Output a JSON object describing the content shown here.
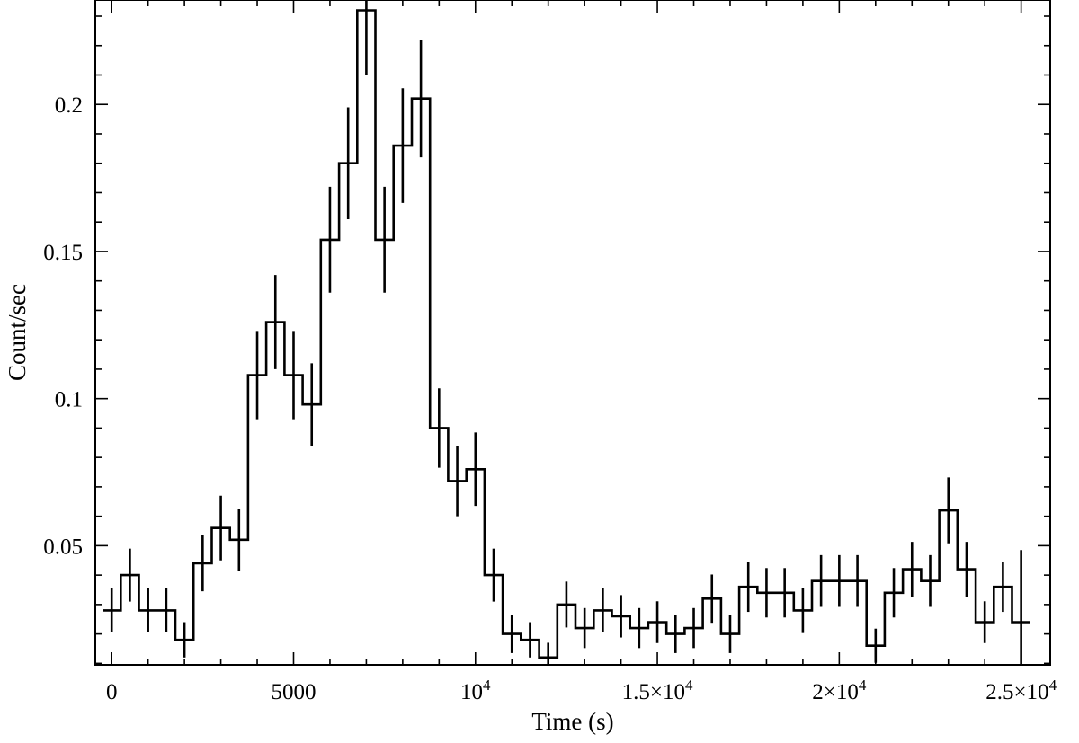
{
  "chart_data": {
    "type": "line",
    "title": "",
    "xlabel": "Time (s)",
    "ylabel": "Count/sec",
    "xlim": [
      -450,
      25800
    ],
    "ylim": [
      0.0095,
      0.2355
    ],
    "x_ticks": [
      {
        "value": 0,
        "mantissa": "0",
        "exponent": ""
      },
      {
        "value": 5000,
        "mantissa": "5000",
        "exponent": ""
      },
      {
        "value": 10000,
        "mantissa": "10",
        "exponent": "4"
      },
      {
        "value": 15000,
        "mantissa": "1.5×10",
        "exponent": "4"
      },
      {
        "value": 20000,
        "mantissa": "2×10",
        "exponent": "4"
      },
      {
        "value": 25000,
        "mantissa": "2.5×10",
        "exponent": "4"
      }
    ],
    "y_ticks": [
      {
        "value": 0.05,
        "label": "0.05"
      },
      {
        "value": 0.1,
        "label": "0.1"
      },
      {
        "value": 0.15,
        "label": "0.15"
      },
      {
        "value": 0.2,
        "label": "0.2"
      }
    ],
    "bin_width": 500,
    "grid": false,
    "series": [
      {
        "style": "step with vertical error bars",
        "x": [
          0,
          500,
          1000,
          1500,
          2000,
          2500,
          3000,
          3500,
          4000,
          4500,
          5000,
          5500,
          6000,
          6500,
          7000,
          7500,
          8000,
          8500,
          9000,
          9500,
          10000,
          10500,
          11000,
          11500,
          12000,
          12500,
          13000,
          13500,
          14000,
          14500,
          15000,
          15500,
          16000,
          16500,
          17000,
          17500,
          18000,
          18500,
          19000,
          19500,
          20000,
          20500,
          21000,
          21500,
          22000,
          22500,
          23000,
          23500,
          24000,
          24500,
          25000
        ],
        "y": [
          0.028,
          0.04,
          0.028,
          0.028,
          0.018,
          0.044,
          0.056,
          0.052,
          0.108,
          0.126,
          0.108,
          0.098,
          0.154,
          0.18,
          0.232,
          0.154,
          0.186,
          0.202,
          0.09,
          0.072,
          0.076,
          0.04,
          0.02,
          0.018,
          0.012,
          0.03,
          0.022,
          0.028,
          0.026,
          0.022,
          0.024,
          0.02,
          0.022,
          0.032,
          0.02,
          0.036,
          0.034,
          0.034,
          0.028,
          0.038,
          0.038,
          0.038,
          0.016,
          0.034,
          0.042,
          0.038,
          0.062,
          0.042,
          0.024,
          0.036,
          0.024
        ],
        "yerr": [
          0.0075,
          0.009,
          0.0075,
          0.0075,
          0.006,
          0.0095,
          0.011,
          0.0105,
          0.015,
          0.016,
          0.015,
          0.014,
          0.018,
          0.019,
          0.022,
          0.018,
          0.0195,
          0.02,
          0.0135,
          0.012,
          0.0125,
          0.009,
          0.0065,
          0.006,
          0.005,
          0.0078,
          0.0068,
          0.0075,
          0.0072,
          0.0068,
          0.0071,
          0.0065,
          0.0068,
          0.0082,
          0.0065,
          0.0085,
          0.0084,
          0.0084,
          0.0077,
          0.0088,
          0.0088,
          0.0088,
          0.0058,
          0.0084,
          0.0093,
          0.0088,
          0.0112,
          0.0093,
          0.0071,
          0.0085,
          0.0245
        ]
      }
    ]
  }
}
